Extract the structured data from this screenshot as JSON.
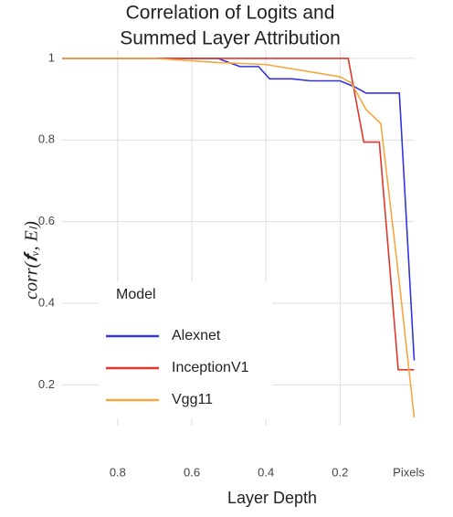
{
  "chart_data": {
    "type": "line",
    "title": [
      "Correlation of Logits and",
      "Summed Layer Attribution"
    ],
    "xlabel": "Layer Depth",
    "ylabel": "corr(𝒇ᵥ, Eₗ)",
    "xlim": [
      0.95,
      0
    ],
    "ylim": [
      0.1,
      1.02
    ],
    "xticks": [
      0.8,
      0.6,
      0.4,
      0.2,
      {
        "value": 0,
        "label": "Pixels"
      }
    ],
    "yticks": [
      0.2,
      0.4,
      0.6,
      0.8,
      1
    ],
    "grid": true,
    "legend": {
      "title": "Model",
      "position": "lower left"
    },
    "series": [
      {
        "name": "Alexnet",
        "color": "#3333e0",
        "x": [
          0.95,
          0.53,
          0.47,
          0.42,
          0.39,
          0.33,
          0.28,
          0.2,
          0.16,
          0.13,
          0.04,
          0
        ],
        "values": [
          1,
          1,
          0.98,
          0.98,
          0.95,
          0.95,
          0.945,
          0.945,
          0.93,
          0.915,
          0.915,
          0.26
        ]
      },
      {
        "name": "InceptionV1",
        "color": "#e0382b",
        "x": [
          0.95,
          0.178,
          0.136,
          0.094,
          0.043,
          0
        ],
        "values": [
          1,
          1,
          0.795,
          0.795,
          0.237,
          0.237
        ]
      },
      {
        "name": "Vgg11",
        "color": "#f5a742",
        "x": [
          0.95,
          0.7,
          0.53,
          0.4,
          0.2,
          0.17,
          0.13,
          0.09,
          0.04,
          0
        ],
        "values": [
          1,
          1,
          0.99,
          0.985,
          0.955,
          0.94,
          0.875,
          0.84,
          0.45,
          0.12
        ]
      }
    ]
  }
}
